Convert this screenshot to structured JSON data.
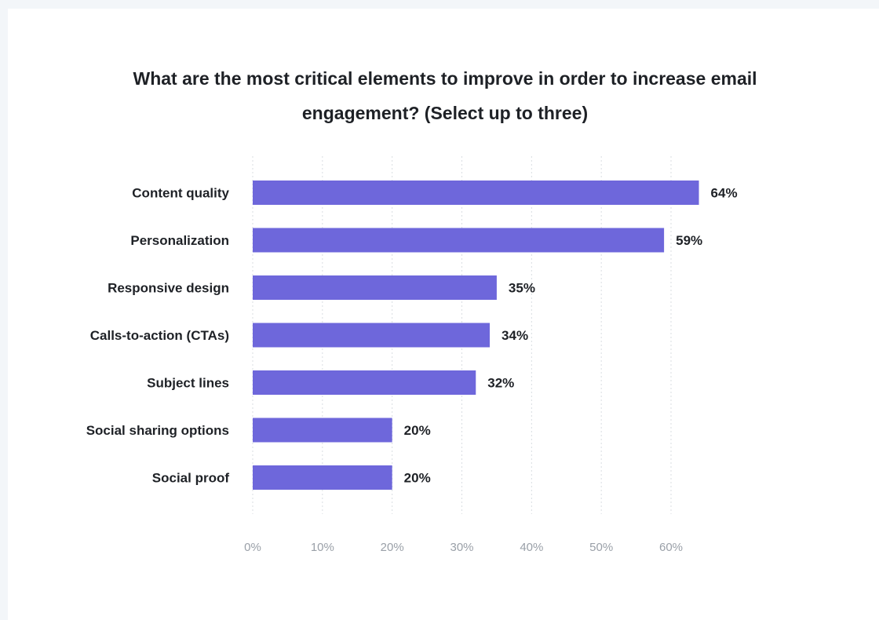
{
  "colors": {
    "bar": "#6e67db",
    "background": "#f3f6f9",
    "card": "#ffffff"
  },
  "chart_data": {
    "type": "bar",
    "orientation": "horizontal",
    "title": "What are the most critical elements to improve in order to increase email engagement? (Select up to three)",
    "categories": [
      "Content quality",
      "Personalization",
      "Responsive design",
      "Calls-to-action (CTAs)",
      "Subject lines",
      "Social sharing options",
      "Social proof"
    ],
    "values": [
      64,
      59,
      35,
      34,
      32,
      20,
      20
    ],
    "value_labels": [
      "64%",
      "59%",
      "35%",
      "34%",
      "32%",
      "20%",
      "20%"
    ],
    "xticks": [
      0,
      10,
      20,
      30,
      40,
      50,
      60
    ],
    "xtick_labels": [
      "0%",
      "10%",
      "20%",
      "30%",
      "40%",
      "50%",
      "60%"
    ],
    "xlim": [
      0,
      60
    ],
    "grid": true,
    "legend": "none"
  }
}
